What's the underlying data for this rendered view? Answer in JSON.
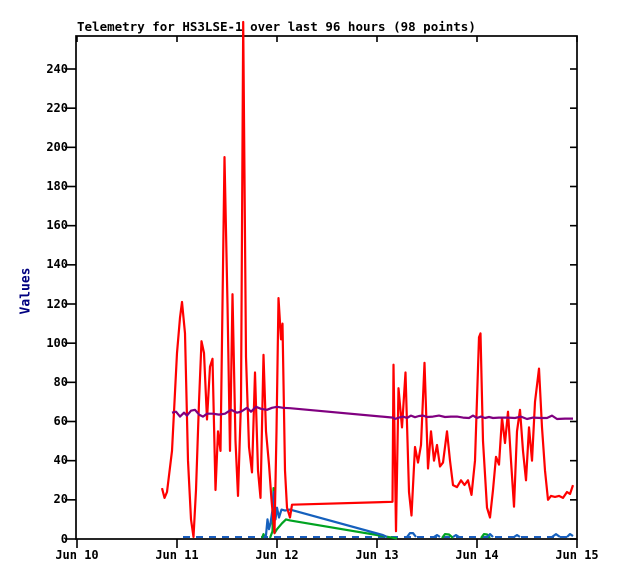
{
  "chart_data": {
    "type": "line",
    "title": "Telemetry for HS3LSE-1 over last 96 hours (98 points)",
    "ylabel": "Values",
    "xlabel": "",
    "x_tick_labels": [
      "Jun 10",
      "Jun 11",
      "Jun 12",
      "Jun 13",
      "Jun 14",
      "Jun 15"
    ],
    "x_tick_days": [
      0,
      1,
      2,
      3,
      4,
      5
    ],
    "y_ticks": [
      0,
      20,
      40,
      60,
      80,
      100,
      120,
      140,
      160,
      180,
      200,
      220,
      240
    ],
    "ylim": [
      0,
      257
    ],
    "xlim_days": [
      0,
      5
    ],
    "grid": false,
    "legend": "none",
    "axis_color": "#000000",
    "title_color": "#000000",
    "ylabel_color": "#000080",
    "background_color": "#ffffff",
    "points_count": 98,
    "series": [
      {
        "name": "telemetry-channel-dashed-blue",
        "color": "#1b5ebe",
        "width": 2,
        "dash": "7 6",
        "segments": [
          [
            [
              1.06,
              1
            ],
            [
              4.96,
              1
            ]
          ]
        ]
      },
      {
        "name": "telemetry-channel-green",
        "color": "#00a321",
        "width": 2.2,
        "dash": "",
        "segments": [
          [
            [
              1.85,
              0.5
            ],
            [
              1.865,
              2.5
            ],
            [
              1.88,
              0.5
            ]
          ],
          [
            [
              1.93,
              0.5
            ],
            [
              1.955,
              4
            ],
            [
              1.965,
              26
            ],
            [
              1.975,
              3
            ],
            [
              2.0,
              5
            ],
            [
              2.05,
              8
            ],
            [
              2.09,
              10
            ],
            [
              2.13,
              9.5
            ],
            [
              3.2,
              0.3
            ]
          ],
          [
            [
              3.65,
              0.5
            ],
            [
              3.68,
              2.5
            ],
            [
              3.72,
              2.3
            ],
            [
              3.76,
              0.5
            ]
          ],
          [
            [
              4.04,
              0.5
            ],
            [
              4.07,
              2.5
            ],
            [
              4.1,
              2.3
            ],
            [
              4.13,
              0.5
            ]
          ]
        ]
      },
      {
        "name": "telemetry-channel-blue",
        "color": "#1560bd",
        "width": 2.2,
        "dash": "",
        "segments": [
          [
            [
              1.87,
              0.5
            ],
            [
              1.89,
              2
            ],
            [
              1.905,
              10
            ],
            [
              1.92,
              5
            ],
            [
              1.935,
              8
            ],
            [
              1.955,
              15
            ],
            [
              1.968,
              24
            ],
            [
              1.985,
              10
            ],
            [
              2.0,
              16
            ],
            [
              2.02,
              11
            ],
            [
              2.045,
              15
            ],
            [
              2.08,
              14.5
            ],
            [
              2.13,
              15
            ],
            [
              3.06,
              2
            ],
            [
              3.1,
              1
            ]
          ],
          [
            [
              3.3,
              1
            ],
            [
              3.33,
              3
            ],
            [
              3.36,
              3
            ],
            [
              3.39,
              1
            ]
          ],
          [
            [
              3.57,
              1
            ],
            [
              3.6,
              2
            ],
            [
              3.63,
              1
            ]
          ],
          [
            [
              3.76,
              1
            ],
            [
              3.79,
              2
            ],
            [
              3.82,
              1
            ]
          ],
          [
            [
              4.1,
              1
            ],
            [
              4.13,
              2.5
            ],
            [
              4.16,
              1
            ]
          ],
          [
            [
              4.37,
              1
            ],
            [
              4.4,
              2
            ],
            [
              4.43,
              1
            ]
          ],
          [
            [
              4.75,
              1
            ],
            [
              4.79,
              2.5
            ],
            [
              4.83,
              1
            ]
          ],
          [
            [
              4.9,
              1
            ],
            [
              4.93,
              2.5
            ],
            [
              4.96,
              1.5
            ]
          ]
        ]
      },
      {
        "name": "telemetry-channel-red",
        "color": "#ff0000",
        "width": 2.2,
        "dash": "",
        "segments": [
          [
            [
              0.85,
              26
            ],
            [
              0.875,
              21
            ],
            [
              0.9,
              24
            ],
            [
              0.95,
              45
            ],
            [
              1.0,
              95
            ],
            [
              1.03,
              113
            ],
            [
              1.05,
              121
            ],
            [
              1.08,
              105
            ],
            [
              1.11,
              40
            ],
            [
              1.14,
              10
            ],
            [
              1.165,
              1
            ],
            [
              1.19,
              25
            ],
            [
              1.22,
              70
            ],
            [
              1.245,
              101
            ],
            [
              1.27,
              95
            ],
            [
              1.3,
              61
            ],
            [
              1.33,
              88
            ],
            [
              1.355,
              92
            ],
            [
              1.385,
              25
            ],
            [
              1.41,
              55
            ],
            [
              1.435,
              45
            ],
            [
              1.475,
              195
            ],
            [
              1.505,
              120
            ],
            [
              1.53,
              45
            ],
            [
              1.555,
              125
            ],
            [
              1.585,
              50
            ],
            [
              1.61,
              22
            ],
            [
              1.64,
              70
            ],
            [
              1.662,
              264
            ],
            [
              1.69,
              93
            ],
            [
              1.72,
              47
            ],
            [
              1.75,
              34
            ],
            [
              1.78,
              85
            ],
            [
              1.81,
              35
            ],
            [
              1.835,
              21
            ],
            [
              1.865,
              94
            ],
            [
              1.89,
              55
            ],
            [
              1.92,
              38
            ],
            [
              1.945,
              20
            ],
            [
              1.975,
              3
            ],
            [
              1.995,
              55
            ],
            [
              2.015,
              123
            ],
            [
              2.04,
              102
            ],
            [
              2.055,
              110
            ],
            [
              2.08,
              35
            ],
            [
              2.1,
              16
            ],
            [
              2.13,
              11
            ],
            [
              2.15,
              17.5
            ],
            [
              3.155,
              19
            ],
            [
              3.165,
              89
            ],
            [
              3.19,
              4
            ],
            [
              3.215,
              77
            ],
            [
              3.25,
              57
            ],
            [
              3.285,
              85
            ],
            [
              3.32,
              24
            ],
            [
              3.345,
              12
            ],
            [
              3.38,
              47
            ],
            [
              3.41,
              39
            ],
            [
              3.44,
              48
            ],
            [
              3.475,
              90
            ],
            [
              3.51,
              36
            ],
            [
              3.54,
              55
            ],
            [
              3.57,
              40
            ],
            [
              3.6,
              48
            ],
            [
              3.63,
              37
            ],
            [
              3.66,
              39
            ],
            [
              3.7,
              55
            ],
            [
              3.73,
              40
            ],
            [
              3.76,
              27.5
            ],
            [
              3.8,
              26.5
            ],
            [
              3.84,
              30
            ],
            [
              3.875,
              27.6
            ],
            [
              3.91,
              30
            ],
            [
              3.945,
              22.5
            ],
            [
              3.98,
              40
            ],
            [
              4.02,
              103
            ],
            [
              4.035,
              105
            ],
            [
              4.06,
              50
            ],
            [
              4.1,
              16
            ],
            [
              4.13,
              11
            ],
            [
              4.16,
              25
            ],
            [
              4.19,
              42
            ],
            [
              4.22,
              38
            ],
            [
              4.25,
              62
            ],
            [
              4.28,
              49
            ],
            [
              4.31,
              65
            ],
            [
              4.34,
              40
            ],
            [
              4.37,
              16.5
            ],
            [
              4.4,
              55
            ],
            [
              4.43,
              66
            ],
            [
              4.46,
              45
            ],
            [
              4.49,
              30
            ],
            [
              4.52,
              57
            ],
            [
              4.55,
              40
            ],
            [
              4.58,
              70
            ],
            [
              4.62,
              87
            ],
            [
              4.65,
              57
            ],
            [
              4.68,
              35
            ],
            [
              4.71,
              20
            ],
            [
              4.74,
              22
            ],
            [
              4.78,
              21.5
            ],
            [
              4.82,
              22
            ],
            [
              4.86,
              21
            ],
            [
              4.9,
              24
            ],
            [
              4.93,
              23
            ],
            [
              4.96,
              27.5
            ]
          ]
        ]
      },
      {
        "name": "telemetry-channel-purple",
        "color": "#800080",
        "width": 2.2,
        "dash": "",
        "segments": [
          [
            [
              0.95,
              64.5
            ],
            [
              0.99,
              65
            ],
            [
              1.03,
              62.5
            ],
            [
              1.07,
              64.5
            ],
            [
              1.1,
              63
            ],
            [
              1.14,
              65.5
            ],
            [
              1.18,
              66
            ],
            [
              1.22,
              63.5
            ],
            [
              1.26,
              62.5
            ],
            [
              1.3,
              64
            ],
            [
              1.36,
              64
            ],
            [
              1.42,
              63.5
            ],
            [
              1.48,
              64
            ],
            [
              1.54,
              66
            ],
            [
              1.6,
              64.5
            ],
            [
              1.64,
              65
            ],
            [
              1.7,
              67
            ],
            [
              1.74,
              65
            ],
            [
              1.79,
              67.5
            ],
            [
              1.84,
              66.5
            ],
            [
              1.9,
              66
            ],
            [
              1.95,
              67
            ],
            [
              2.0,
              67.5
            ],
            [
              2.06,
              67
            ],
            [
              2.13,
              66.8
            ],
            [
              3.16,
              62
            ],
            [
              3.18,
              61.3
            ],
            [
              3.22,
              62
            ],
            [
              3.26,
              62.5
            ],
            [
              3.3,
              61.8
            ],
            [
              3.34,
              63
            ],
            [
              3.38,
              62.2
            ],
            [
              3.42,
              62.8
            ],
            [
              3.46,
              63
            ],
            [
              3.5,
              62.3
            ],
            [
              3.56,
              62.5
            ],
            [
              3.62,
              63
            ],
            [
              3.68,
              62.3
            ],
            [
              3.74,
              62.5
            ],
            [
              3.8,
              62.5
            ],
            [
              3.86,
              62
            ],
            [
              3.92,
              61.8
            ],
            [
              3.96,
              63
            ],
            [
              4.0,
              61.8
            ],
            [
              4.04,
              62.5
            ],
            [
              4.08,
              61.8
            ],
            [
              4.12,
              62.3
            ],
            [
              4.16,
              61.8
            ],
            [
              4.22,
              62
            ],
            [
              4.3,
              62
            ],
            [
              4.38,
              61.8
            ],
            [
              4.44,
              62.5
            ],
            [
              4.5,
              61.3
            ],
            [
              4.56,
              62
            ],
            [
              4.64,
              61.8
            ],
            [
              4.7,
              61.8
            ],
            [
              4.75,
              63
            ],
            [
              4.8,
              61.3
            ],
            [
              4.88,
              61.5
            ],
            [
              4.96,
              61.5
            ]
          ]
        ]
      }
    ]
  }
}
